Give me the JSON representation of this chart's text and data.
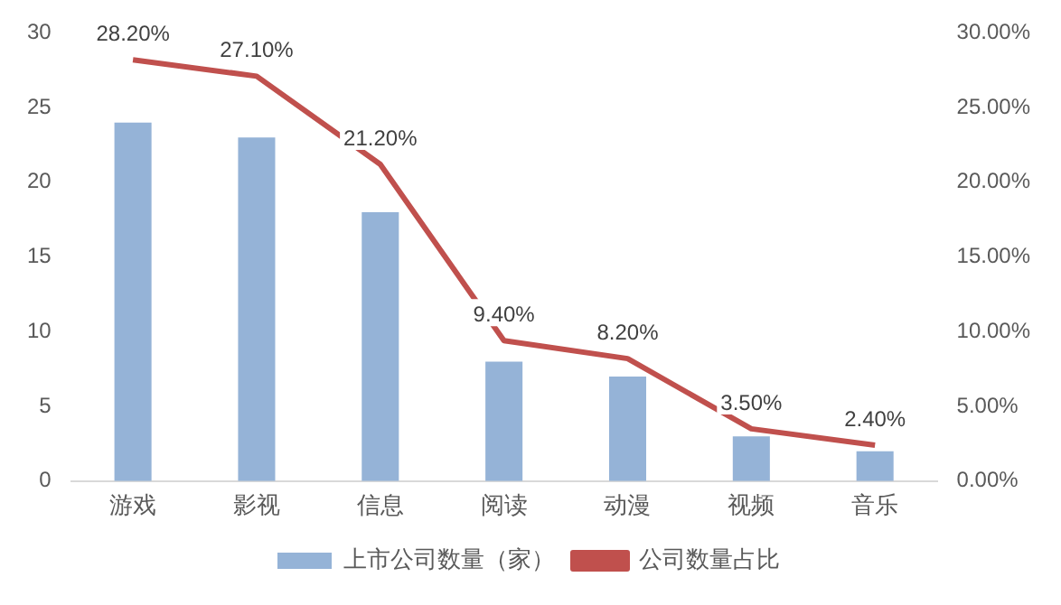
{
  "chart_data": {
    "type": "bar",
    "categories": [
      "游戏",
      "影视",
      "信息",
      "阅读",
      "动漫",
      "视频",
      "音乐"
    ],
    "series": [
      {
        "name": "上市公司数量（家）",
        "color": "#95b3d7",
        "values": [
          24,
          23,
          18,
          8,
          7,
          3,
          2
        ]
      },
      {
        "name": "公司数量占比",
        "type": "line",
        "axis": "y2",
        "color": "#c0504d",
        "values": [
          28.2,
          27.1,
          21.2,
          9.4,
          8.2,
          3.5,
          2.4
        ],
        "value_labels": [
          "28.20%",
          "27.10%",
          "21.20%",
          "9.40%",
          "8.20%",
          "3.50%",
          "2.40%"
        ]
      }
    ],
    "ylim": [
      0,
      30
    ],
    "yticks": [
      0,
      5,
      10,
      15,
      20,
      25,
      30
    ],
    "y2lim": [
      0,
      30
    ],
    "y2ticks": [
      {
        "value": 0,
        "label": "0.00%"
      },
      {
        "value": 5,
        "label": "5.00%"
      },
      {
        "value": 10,
        "label": "10.00%"
      },
      {
        "value": 15,
        "label": "15.00%"
      },
      {
        "value": 20,
        "label": "20.00%"
      },
      {
        "value": 25,
        "label": "25.00%"
      },
      {
        "value": 30,
        "label": "30.00%"
      }
    ],
    "grid": false,
    "legend": "bottom",
    "marker": "none",
    "line_style": "solid"
  }
}
